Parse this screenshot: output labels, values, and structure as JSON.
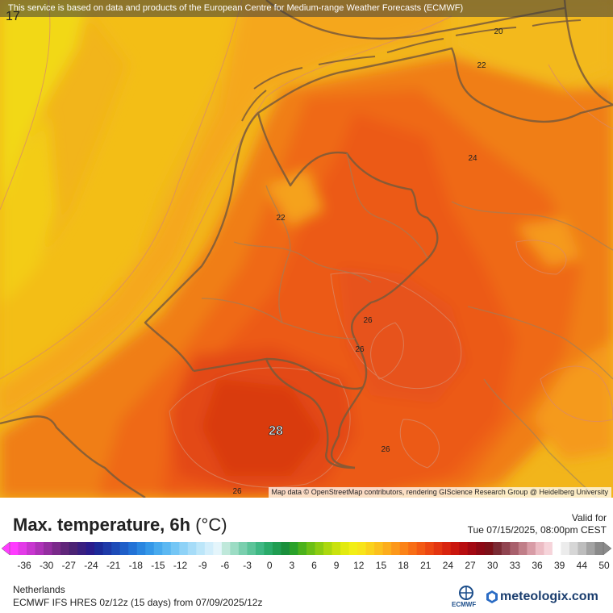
{
  "banner": "This service is based on data and products of the European Centre for Medium-range Weather Forecasts (ECMWF)",
  "corner_value": "17",
  "credits": "Map data © OpenStreetMap contributors, rendering GIScience Research Group @ Heidelberg University",
  "title": {
    "main": "Max. temperature, 6h",
    "unit": "(°C)"
  },
  "valid": {
    "label": "Valid for",
    "date": "Tue 07/15/2025, 08:00pm CEST"
  },
  "region": "Netherlands",
  "model": "ECMWF IFS HRES 0z/12z (15 days) from 07/09/2025/12z",
  "logos": {
    "ecmwf": "ECMWF",
    "meteologix": "meteologix.com"
  },
  "contour_labels": [
    {
      "text": "20"
    },
    {
      "text": "22"
    },
    {
      "text": "24"
    },
    {
      "text": "22"
    },
    {
      "text": "26"
    },
    {
      "text": "26"
    },
    {
      "text": "26"
    },
    {
      "text": "26"
    }
  ],
  "max_label": "28",
  "legend": {
    "ticks": [
      "-36",
      "-30",
      "-27",
      "-24",
      "-21",
      "-18",
      "-15",
      "-12",
      "-9",
      "-6",
      "-3",
      "0",
      "3",
      "6",
      "9",
      "12",
      "15",
      "18",
      "21",
      "24",
      "27",
      "30",
      "33",
      "36",
      "39",
      "44",
      "50"
    ],
    "colors": [
      "#ff3cff",
      "#e33ae8",
      "#c836d0",
      "#ae32b8",
      "#942ea0",
      "#7a2a8a",
      "#60267a",
      "#4b2374",
      "#3a1f80",
      "#2a1c8c",
      "#1c2a98",
      "#1e3aa8",
      "#1e4cb8",
      "#1f5fc8",
      "#2272d6",
      "#2a86e0",
      "#3598e8",
      "#48aaee",
      "#5cb8f2",
      "#74c6f5",
      "#8ed2f7",
      "#a6dcf8",
      "#bce6f9",
      "#d2eefb",
      "#e4f5fb",
      "#bfe8da",
      "#9cdcc4",
      "#7acfae",
      "#5cc499",
      "#3fb884",
      "#2aab6a",
      "#1f9d52",
      "#1a8f3c",
      "#2aa12a",
      "#4cb11c",
      "#6dbf16",
      "#8dcc12",
      "#acd80f",
      "#c9e20e",
      "#e2ea10",
      "#f2ee16",
      "#f8e41a",
      "#fad21c",
      "#fbc01d",
      "#fcad1c",
      "#fc981a",
      "#fb8318",
      "#f86e16",
      "#f35a14",
      "#ec4712",
      "#e33510",
      "#d8240e",
      "#ca160e",
      "#b80d10",
      "#a20812",
      "#8c0814",
      "#7c1018",
      "#7a2a34",
      "#904450",
      "#a8606c",
      "#c07e88",
      "#d89ca6",
      "#ecbcc4",
      "#f6d4da",
      "#ffffff",
      "#ececec",
      "#d6d6d6",
      "#bdbdbd",
      "#a3a3a3",
      "#8a8a8a"
    ]
  }
}
